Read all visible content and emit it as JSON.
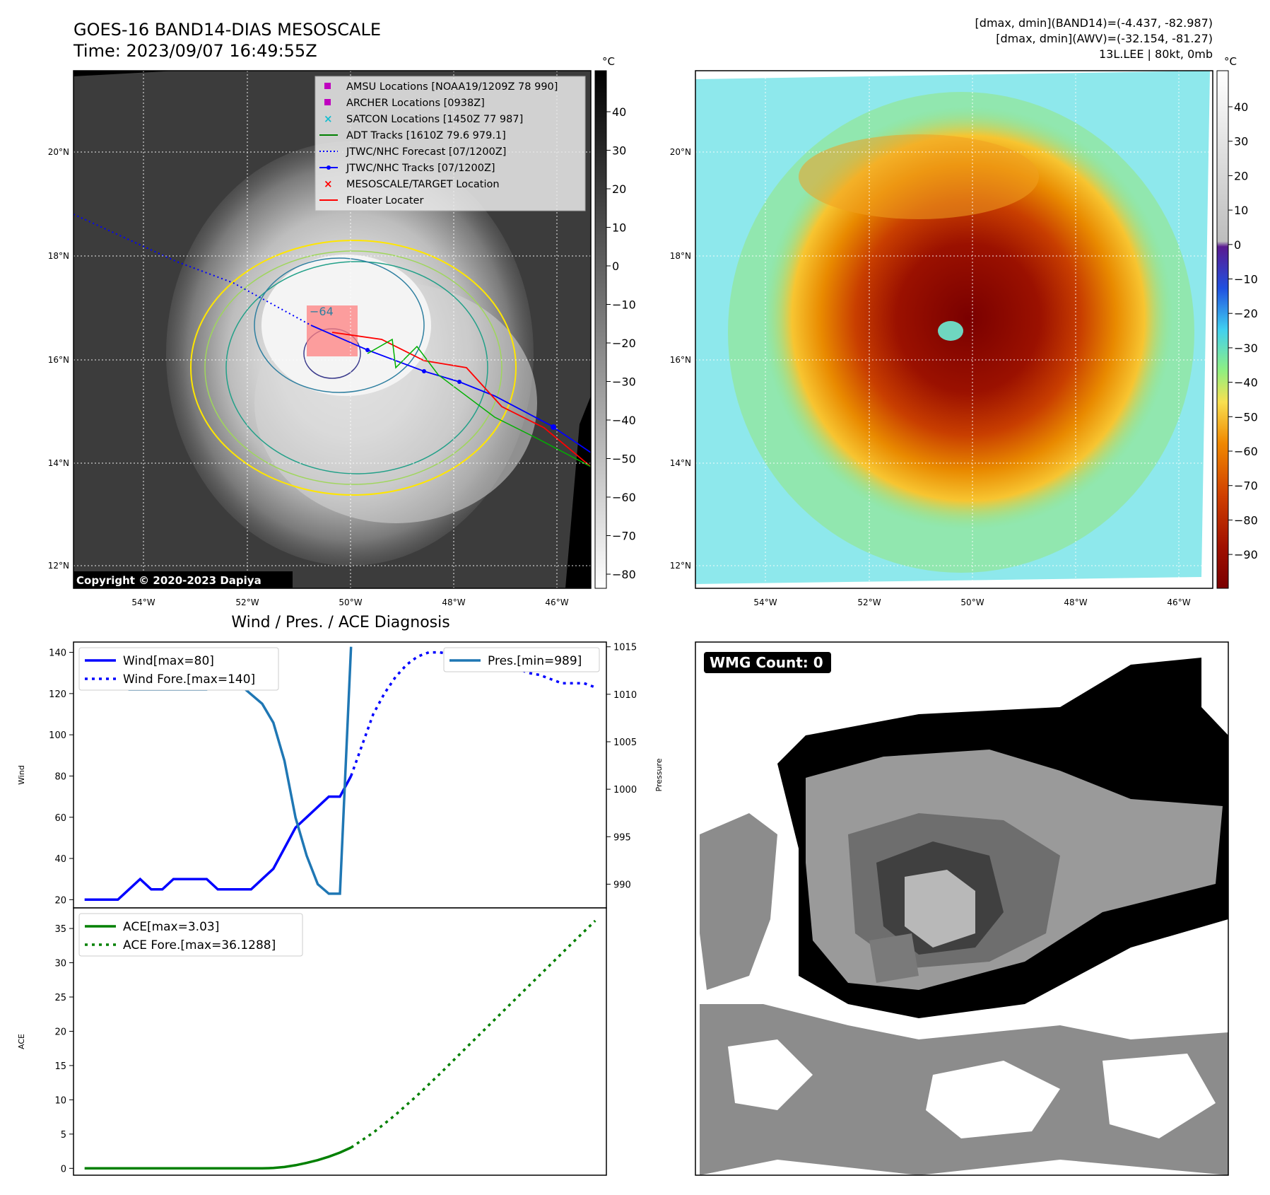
{
  "header": {
    "title": "GOES-16 BAND14-DIAS MESOSCALE",
    "time": "Time: 2023/09/07 16:49:55Z",
    "stats_line1": "[dmax, dmin](BAND14)=(-4.437, -82.987)",
    "stats_line2": "[dmax, dmin](AWV)=(-32.154, -81.27)",
    "storm_line": "13L.LEE | 80kt, 0mb"
  },
  "colors": {
    "wind": "#0000ff",
    "pressure": "#1f77b4",
    "ace": "#008000",
    "track": "#0000ff",
    "adt": "#008000",
    "satcon": "#17becf",
    "amsu": "#bf00bf",
    "floater": "#ff0000"
  },
  "map_panels": {
    "lat_ticks": [
      "20°N",
      "18°N",
      "16°N",
      "14°N",
      "12°N"
    ],
    "lon_ticks": [
      "54°W",
      "52°W",
      "50°W",
      "48°W",
      "46°W"
    ],
    "unit": "°C",
    "ir_colorbar_ticks": [
      "40",
      "30",
      "20",
      "10",
      "0",
      "−10",
      "−20",
      "−30",
      "−40",
      "−50",
      "−60",
      "−70",
      "−80"
    ],
    "enh_colorbar_ticks": [
      "40",
      "30",
      "20",
      "10",
      "0",
      "−10",
      "−20",
      "−30",
      "−40",
      "−50",
      "−60",
      "−70",
      "−80",
      "−90"
    ],
    "contour_label": "−64",
    "copyright": "Copyright © 2020-2023 Dapiya",
    "legend": [
      {
        "label": "AMSU Locations [NOAA19/1209Z 78 990]",
        "marker": "square",
        "color": "#bf00bf"
      },
      {
        "label": "ARCHER Locations [0938Z]",
        "marker": "square",
        "color": "#bf00bf"
      },
      {
        "label": "SATCON Locations [1450Z 77 987]",
        "marker": "x",
        "color": "#17becf"
      },
      {
        "label": "ADT Tracks [1610Z 79.6 979.1]",
        "marker": "line",
        "color": "#008000"
      },
      {
        "label": "JTWC/NHC Forecast [07/1200Z]",
        "marker": "dotted",
        "color": "#0000ff"
      },
      {
        "label": "JTWC/NHC Tracks [07/1200Z]",
        "marker": "line-dot",
        "color": "#0000ff"
      },
      {
        "label": "MESOSCALE/TARGET Location",
        "marker": "x",
        "color": "#ff0000"
      },
      {
        "label": "Floater Locater",
        "marker": "line",
        "color": "#ff0000"
      }
    ]
  },
  "wmg": {
    "label": "WMG Count: 0"
  },
  "chart_data": [
    {
      "type": "line",
      "title": "Wind / Pres. / ACE Diagnosis",
      "ylabel": "Wind",
      "ylabel2": "Pressure",
      "ylim": [
        16,
        145
      ],
      "ylim2": [
        987.5,
        1015.5
      ],
      "yticks": [
        20,
        40,
        60,
        80,
        100,
        120,
        140
      ],
      "yticks2": [
        990,
        995,
        1000,
        1005,
        1010,
        1015
      ],
      "x_wind": [
        0,
        1,
        2,
        3,
        4,
        5,
        6,
        7,
        8,
        9,
        10,
        11,
        12,
        13,
        14,
        15,
        16,
        17,
        18,
        19,
        20,
        21,
        22,
        23,
        24
      ],
      "series": [
        {
          "name": "Wind[max=80]",
          "values": [
            20,
            20,
            20,
            20,
            25,
            30,
            25,
            25,
            30,
            30,
            30,
            30,
            25,
            25,
            25,
            25,
            30,
            35,
            45,
            55,
            60,
            65,
            70,
            70,
            80
          ]
        },
        {
          "name": "Wind Fore.[max=140]",
          "x": [
            24,
            25,
            26,
            27,
            28,
            29,
            30,
            31,
            32,
            33,
            34,
            35,
            36,
            37,
            38,
            39,
            40,
            41,
            42,
            43,
            44,
            45,
            46
          ],
          "values": [
            80,
            95,
            110,
            120,
            128,
            134,
            138,
            140,
            140,
            139,
            138,
            137,
            136,
            135,
            134,
            132,
            130,
            129,
            127,
            125,
            125,
            125,
            123
          ]
        },
        {
          "name": "Pres.[min=989]",
          "axis": "right",
          "x": [
            0,
            1,
            2,
            3,
            4,
            5,
            6,
            7,
            8,
            9,
            10,
            11,
            12,
            13,
            14,
            15,
            16,
            17,
            18,
            19,
            20,
            21,
            22,
            23,
            24
          ],
          "values": [
            1011,
            1011,
            1011,
            1011,
            1010.5,
            1010.5,
            1010.5,
            1010.5,
            1010.5,
            1010.5,
            1010.5,
            1010.5,
            1011,
            1011,
            1011,
            1010,
            1009,
            1007,
            1003,
            997,
            993,
            990,
            989,
            989,
            1015
          ]
        }
      ]
    },
    {
      "type": "line",
      "ylabel": "ACE",
      "ylim": [
        -1,
        38
      ],
      "yticks": [
        0,
        5,
        10,
        15,
        20,
        25,
        30,
        35
      ],
      "series": [
        {
          "name": "ACE[max=3.03]",
          "x": [
            0,
            1,
            2,
            3,
            4,
            5,
            6,
            7,
            8,
            9,
            10,
            11,
            12,
            13,
            14,
            15,
            16,
            17,
            18,
            19,
            20,
            21,
            22,
            23,
            24
          ],
          "values": [
            0,
            0,
            0,
            0,
            0,
            0,
            0,
            0,
            0,
            0,
            0,
            0,
            0,
            0,
            0,
            0,
            0,
            0.05,
            0.2,
            0.45,
            0.8,
            1.2,
            1.7,
            2.3,
            3.03
          ]
        },
        {
          "name": "ACE Fore.[max=36.1288]",
          "x": [
            24,
            26,
            28,
            30,
            32,
            34,
            36,
            38,
            40,
            42,
            44,
            46
          ],
          "values": [
            3.03,
            5.2,
            7.8,
            10.7,
            13.8,
            17.0,
            20.2,
            23.4,
            26.6,
            29.8,
            33.0,
            36.1288
          ]
        }
      ]
    }
  ]
}
